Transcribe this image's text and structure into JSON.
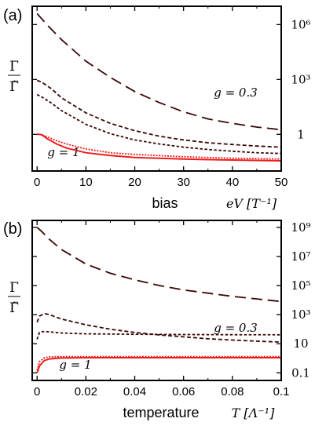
{
  "colors": {
    "dark": "#3a0606",
    "red": "#ee1c1c",
    "frame": "#000000"
  },
  "chart_data": [
    {
      "panel_label": "(a)",
      "type": "line",
      "ylabel_top": "Γ",
      "ylabel_bottom": "Γ̃",
      "xlabel_word": "bias",
      "xlabel_unit": "eV [T⁻¹]",
      "xlim": [
        -1,
        50
      ],
      "x_ticks": [
        "0",
        "10",
        "20",
        "30",
        "40",
        "50"
      ],
      "y_scale": "log",
      "ylim": [
        0.01,
        10000000.0
      ],
      "y_ticks": [
        {
          "value": 1000000.0,
          "label": "10⁶"
        },
        {
          "value": 1000.0,
          "label": "10³"
        },
        {
          "value": 1,
          "label": "1"
        }
      ],
      "annotations": [
        "g = 0.3",
        "g = 1"
      ],
      "series": [
        {
          "style": "long-dash",
          "color": "dark",
          "x": [
            0,
            2,
            5,
            10,
            15,
            20,
            25,
            30,
            35,
            40,
            45,
            50
          ],
          "y": [
            4000000.0,
            1000000.0,
            150000.0,
            10000.0,
            1300.0,
            220,
            55,
            17,
            7,
            4,
            2.5,
            1.8
          ]
        },
        {
          "style": "short-dash",
          "color": "dark",
          "x": [
            0,
            1,
            3,
            5,
            10,
            15,
            20,
            25,
            30,
            35,
            40,
            45,
            50
          ],
          "y": [
            900,
            700,
            300,
            100,
            15,
            4,
            1.6,
            0.8,
            0.5,
            0.35,
            0.28,
            0.23,
            0.2
          ]
        },
        {
          "style": "medium-dash",
          "color": "dark",
          "x": [
            0,
            1,
            3,
            5,
            10,
            15,
            20,
            25,
            30,
            35,
            40,
            45,
            50
          ],
          "y": [
            150,
            110,
            50,
            20,
            3.5,
            1.1,
            0.5,
            0.3,
            0.2,
            0.15,
            0.12,
            0.1,
            0.09
          ]
        },
        {
          "style": "dotted",
          "color": "red",
          "x": [
            0,
            1,
            2,
            4,
            6,
            10,
            15,
            20,
            30,
            40,
            50
          ],
          "y": [
            1.0,
            0.95,
            0.75,
            0.45,
            0.3,
            0.16,
            0.1,
            0.08,
            0.06,
            0.05,
            0.045
          ]
        },
        {
          "style": "solid",
          "color": "red",
          "x": [
            0,
            1,
            2,
            4,
            6,
            10,
            15,
            20,
            30,
            40,
            50
          ],
          "y": [
            1.05,
            0.95,
            0.6,
            0.3,
            0.18,
            0.1,
            0.07,
            0.055,
            0.045,
            0.04,
            0.036
          ]
        }
      ]
    },
    {
      "panel_label": "(b)",
      "type": "line",
      "ylabel_top": "Γ",
      "ylabel_bottom": "Γ̃",
      "xlabel_word": "temperature",
      "xlabel_unit": "T [Λ⁻¹]",
      "xlim": [
        -0.002,
        0.1
      ],
      "x_ticks": [
        "0",
        "0.02",
        "0.04",
        "0.06",
        "0.08",
        "0.1"
      ],
      "y_scale": "log",
      "ylim": [
        0.03,
        3000000000.0
      ],
      "y_ticks": [
        {
          "value": 1000000000.0,
          "label": "10⁹"
        },
        {
          "value": 10000000.0,
          "label": "10⁷"
        },
        {
          "value": 100000.0,
          "label": "10⁵"
        },
        {
          "value": 1000.0,
          "label": "10³"
        },
        {
          "value": 10,
          "label": "10"
        },
        {
          "value": 0.1,
          "label": "0.1"
        }
      ],
      "annotations": [
        "g = 0.3",
        "g = 1"
      ],
      "series": [
        {
          "style": "long-dash",
          "color": "dark",
          "x": [
            0,
            0.002,
            0.005,
            0.01,
            0.02,
            0.03,
            0.04,
            0.05,
            0.06,
            0.07,
            0.08,
            0.09,
            0.1
          ],
          "y": [
            1000000000.0,
            500000000.0,
            150000000.0,
            30000000.0,
            3000000.0,
            700000.0,
            250000.0,
            100000.0,
            50000.0,
            30000.0,
            18000.0,
            12000.0,
            8000.0
          ]
        },
        {
          "style": "short-dash",
          "color": "dark",
          "x": [
            0,
            0.001,
            0.003,
            0.005,
            0.01,
            0.02,
            0.03,
            0.04,
            0.05,
            0.06,
            0.07,
            0.08,
            0.09,
            0.1
          ],
          "y": [
            300,
            800,
            1200,
            1000,
            500,
            200,
            100,
            60,
            40,
            30,
            22,
            18,
            15,
            13
          ]
        },
        {
          "style": "medium-dash",
          "color": "dark",
          "x": [
            0,
            0.001,
            0.003,
            0.005,
            0.01,
            0.02,
            0.04,
            0.06,
            0.08,
            0.1
          ],
          "y": [
            20,
            60,
            70,
            65,
            55,
            48,
            45,
            43,
            42,
            41
          ]
        },
        {
          "style": "dotted",
          "color": "red",
          "x": [
            0,
            0.001,
            0.003,
            0.005,
            0.01,
            0.02,
            0.04,
            0.06,
            0.08,
            0.1
          ],
          "y": [
            0.15,
            0.6,
            1.1,
            1.25,
            1.3,
            1.3,
            1.3,
            1.3,
            1.3,
            1.3
          ]
        },
        {
          "style": "solid",
          "color": "red",
          "x": [
            0,
            0.001,
            0.003,
            0.005,
            0.008,
            0.01,
            0.02,
            0.04,
            0.06,
            0.08,
            0.1
          ],
          "y": [
            0.1,
            0.3,
            0.7,
            0.9,
            1.0,
            1.05,
            1.1,
            1.1,
            1.1,
            1.1,
            1.1
          ]
        }
      ]
    }
  ]
}
